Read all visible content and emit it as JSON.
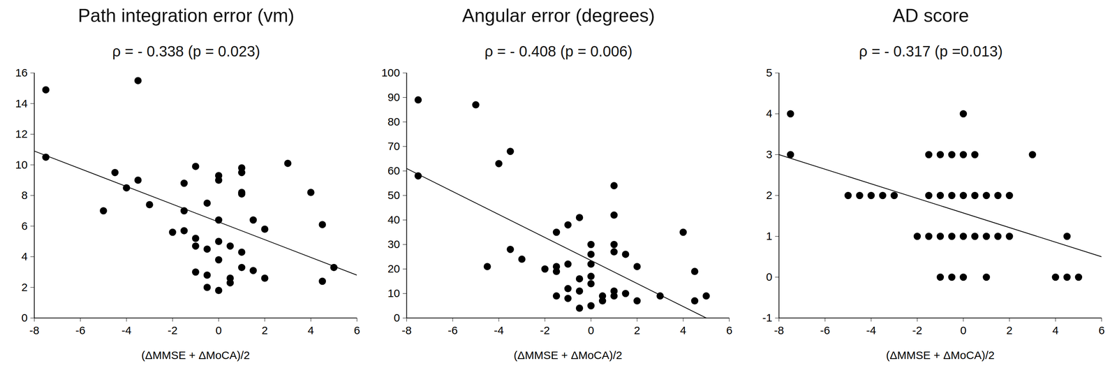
{
  "chart_data": [
    {
      "type": "scatter",
      "title": "Path integration error (vm)",
      "subtitle": "ρ = - 0.338 (p = 0.023)",
      "x_label": "(ΔMMSE + ΔMoCA)/2",
      "color": "#000000",
      "marker": "circle",
      "x": [
        -7.5,
        -7.5,
        -3.5,
        -5,
        -4.5,
        -4,
        -3.5,
        -3,
        -2,
        -1.5,
        -1.5,
        -1.5,
        -1,
        -1,
        -1,
        -1,
        -0.5,
        -0.5,
        -0.5,
        -0.5,
        0,
        0,
        0,
        0,
        0,
        0,
        0.5,
        0.5,
        0.5,
        1,
        1,
        1,
        1,
        1,
        1,
        1.5,
        1.5,
        2,
        2,
        3,
        4,
        4.5,
        4.5,
        5
      ],
      "values": [
        14.9,
        10.5,
        15.5,
        7,
        9.5,
        8.5,
        9,
        7.4,
        5.6,
        8.8,
        7,
        5.7,
        9.9,
        5.2,
        4.7,
        3,
        7.5,
        4.5,
        2.8,
        2,
        9.3,
        9,
        6.4,
        5,
        3.8,
        1.8,
        4.7,
        2.6,
        2.3,
        9.8,
        9.5,
        8.2,
        8.1,
        4.3,
        3.3,
        6.4,
        3.1,
        5.8,
        2.6,
        10.1,
        8.2,
        6.1,
        2.4,
        3.3
      ],
      "trend_line": {
        "x": [
          -8,
          6
        ],
        "y": [
          10.9,
          2.8
        ]
      },
      "xlim": [
        -8,
        6
      ],
      "xticks": [
        -8,
        -6,
        -4,
        -2,
        0,
        2,
        4,
        6
      ],
      "ylim": [
        0,
        16
      ],
      "yticks": [
        0,
        2,
        4,
        6,
        8,
        10,
        12,
        14,
        16
      ]
    },
    {
      "type": "scatter",
      "title": "Angular error (degrees)",
      "subtitle": "ρ = - 0.408 (p = 0.006)",
      "x_label": "(ΔMMSE + ΔMoCA)/2",
      "color": "#000000",
      "marker": "circle",
      "x": [
        -7.5,
        -7.5,
        -5,
        -4.5,
        -4,
        -3.5,
        -3.5,
        -3,
        -2,
        -1.5,
        -1.5,
        -1.5,
        -1.5,
        -1,
        -1,
        -1,
        -1,
        -0.5,
        -0.5,
        -0.5,
        -0.5,
        0,
        0,
        0,
        0,
        0,
        0,
        0.5,
        0.5,
        1,
        1,
        1,
        1,
        1,
        1,
        1.5,
        1.5,
        2,
        2,
        3,
        4,
        4.5,
        4.5,
        5
      ],
      "values": [
        89,
        58,
        87,
        21,
        63,
        68,
        28,
        24,
        20,
        35,
        21,
        19,
        9,
        38,
        22,
        12,
        8,
        41,
        16,
        11,
        4,
        30,
        26,
        22,
        17,
        14,
        5,
        9,
        7,
        54,
        42,
        30,
        27,
        11,
        9,
        26,
        10,
        21,
        7,
        9,
        35,
        19,
        7,
        9
      ],
      "trend_line": {
        "x": [
          -8,
          5
        ],
        "y": [
          61,
          0
        ]
      },
      "xlim": [
        -8,
        6
      ],
      "xticks": [
        -8,
        -6,
        -4,
        -2,
        0,
        2,
        4,
        6
      ],
      "ylim": [
        0,
        100
      ],
      "yticks": [
        0,
        10,
        20,
        30,
        40,
        50,
        60,
        70,
        80,
        90,
        100
      ]
    },
    {
      "type": "scatter",
      "title": "AD score",
      "subtitle": "ρ = - 0.317 (p =0.013)",
      "x_label": "(ΔMMSE + ΔMoCA)/2",
      "color": "#000000",
      "marker": "circle",
      "x": [
        -7.5,
        -7.5,
        -5,
        -4.5,
        -4,
        -3.5,
        -3,
        -2,
        -1.5,
        -1.5,
        -1.5,
        -1,
        -1,
        -1,
        -1,
        -0.5,
        -0.5,
        -0.5,
        -0.5,
        0,
        0,
        0,
        0,
        0,
        0.5,
        0.5,
        0.5,
        1,
        1,
        1,
        1.5,
        1.5,
        2,
        2,
        3,
        4,
        4.5,
        4.5,
        5
      ],
      "values": [
        4,
        3,
        2,
        2,
        2,
        2,
        2,
        1,
        3,
        2,
        1,
        3,
        2,
        1,
        0,
        3,
        2,
        1,
        0,
        4,
        3,
        2,
        1,
        0,
        3,
        2,
        1,
        2,
        1,
        0,
        2,
        1,
        2,
        1,
        3,
        0,
        1,
        0,
        0
      ],
      "trend_line": {
        "x": [
          -8,
          6
        ],
        "y": [
          3,
          0.5
        ]
      },
      "xlim": [
        -8,
        6
      ],
      "xticks": [
        -8,
        -6,
        -4,
        -2,
        0,
        2,
        4,
        6
      ],
      "ylim": [
        -1,
        5
      ],
      "yticks": [
        -1,
        0,
        1,
        2,
        3,
        4,
        5
      ]
    }
  ]
}
